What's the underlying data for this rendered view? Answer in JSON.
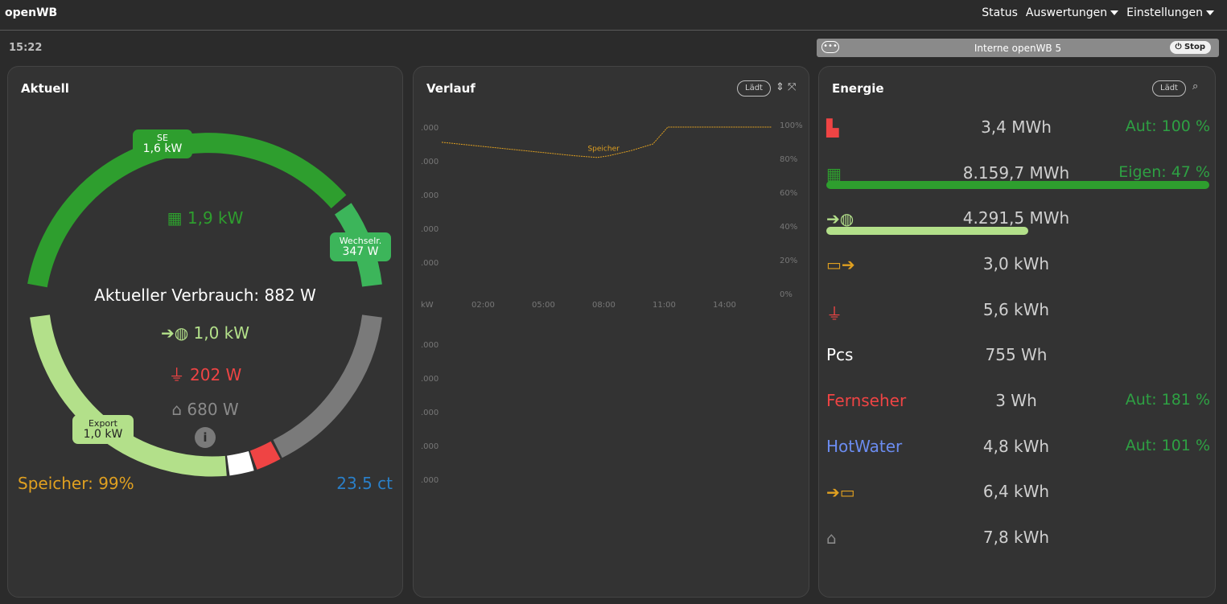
{
  "app": {
    "brand": "openWB"
  },
  "nav": {
    "status": "Status",
    "auswertungen": "Auswertungen",
    "einstellungen": "Einstellungen"
  },
  "clock": "15:22",
  "chargepoint": {
    "dots": "•••",
    "name": "Interne openWB 5",
    "stop_label": "Stop"
  },
  "aktuell": {
    "title": "Aktuell",
    "labels": {
      "se_name": "SE",
      "se_value": "1,6 kW",
      "wechselr_name": "Wechselr.",
      "wechselr_value": "347 W",
      "export_name": "Export",
      "export_value": "1,0 kW"
    },
    "pv": "1,9 kW",
    "verbrauch": "Aktueller Verbrauch: 882 W",
    "grid": "1,0 kW",
    "charge": "202 W",
    "house": "680 W",
    "speicher": "Speicher: 99%",
    "price": "23.5 ct",
    "colors": {
      "pv": "#2e9e2e",
      "pv_light": "#3cb55a",
      "export": "#b3e08a",
      "charge": "#ef4444",
      "house": "#7a7a7a",
      "speicher": "#e0a020",
      "price": "#2a7fc8"
    }
  },
  "verlauf": {
    "title": "Verlauf",
    "mode_label": "Lädt",
    "series_label": "Speicher",
    "kw_axis_label": "kW",
    "x_ticks": [
      "02:00",
      "05:00",
      "08:00",
      "11:00",
      "14:00"
    ],
    "right_ticks": [
      "100%",
      "80%",
      "60%",
      "40%",
      "20%",
      "0%"
    ],
    "left_ticks_top": [
      ".000",
      ".000",
      ".000",
      ".000",
      ".000"
    ],
    "left_ticks_bottom": [
      ".000",
      ".000",
      ".000",
      ".000",
      ".000"
    ]
  },
  "energie": {
    "title": "Energie",
    "mode_label": "Lädt",
    "rows": [
      {
        "icon": "factory-icon",
        "value": "3,4 MWh",
        "extra": "Aut: 100 %"
      },
      {
        "icon": "solar-panel-icon",
        "value": "8.159,7 MWh",
        "extra": "Eigen: 47 %"
      },
      {
        "icon": "export-grid-icon",
        "value": "4.291,5 MWh",
        "extra": ""
      },
      {
        "icon": "battery-discharge-icon",
        "value": "3,0 kWh",
        "extra": ""
      },
      {
        "icon": "plug-icon",
        "value": "5,6 kWh",
        "extra": ""
      },
      {
        "label": "Pcs",
        "value": "755 Wh",
        "extra": ""
      },
      {
        "label": "Fernseher",
        "value": "3 Wh",
        "extra": "Aut: 181 %"
      },
      {
        "label": "HotWater",
        "value": "4,8 kWh",
        "extra": "Aut: 101 %"
      },
      {
        "icon": "battery-charge-icon",
        "value": "6,4 kWh",
        "extra": ""
      },
      {
        "icon": "house-icon",
        "value": "7,8 kWh",
        "extra": ""
      }
    ],
    "colors": {
      "label_pcs": "#ffffff",
      "label_fernseher": "#ef4444",
      "label_hotwater": "#6b8cf0"
    }
  },
  "chart_data": {
    "type": "line",
    "series": [
      {
        "name": "Speicher",
        "x": [
          "00:30",
          "02:00",
          "03:30",
          "05:00",
          "06:30",
          "07:30",
          "08:00",
          "09:00",
          "10:00",
          "10:40",
          "12:00",
          "14:00",
          "15:20"
        ],
        "values": [
          91,
          89,
          87,
          85,
          83,
          82,
          83,
          86,
          90,
          100,
          100,
          100,
          100
        ]
      }
    ],
    "x_ticks": [
      "02:00",
      "05:00",
      "08:00",
      "11:00",
      "14:00"
    ],
    "ylim": [
      0,
      100
    ],
    "ylabel": "",
    "xlabel": ""
  }
}
